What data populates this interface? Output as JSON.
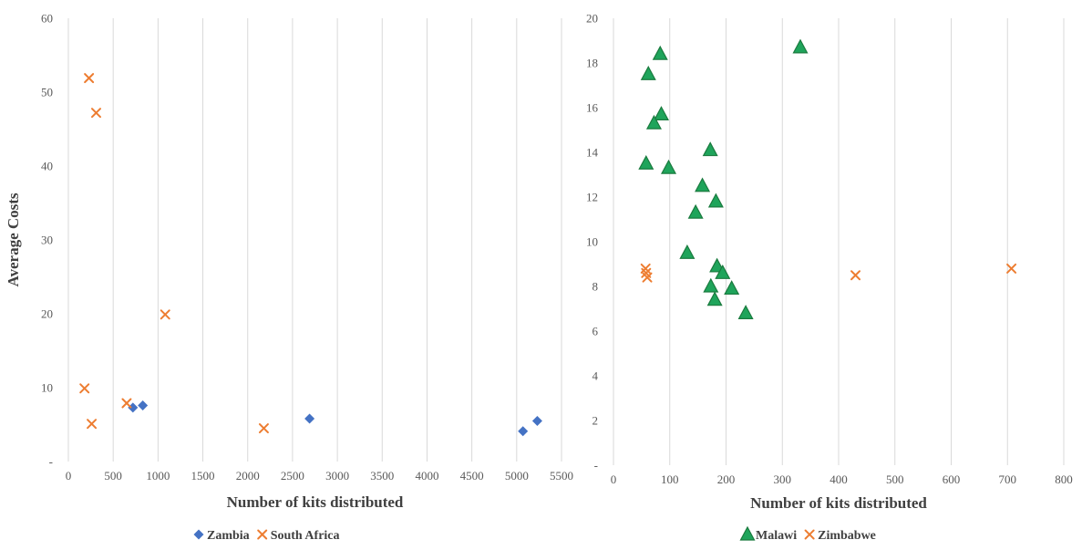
{
  "chart_data": [
    {
      "type": "scatter",
      "title": "",
      "xlabel": "Number of kits distributed",
      "ylabel": "Average Costs",
      "xlim": [
        0,
        5500
      ],
      "ylim": [
        0,
        60
      ],
      "x_ticks": [
        "0",
        "500",
        "1000",
        "1500",
        "2000",
        "2500",
        "3000",
        "3500",
        "4000",
        "4500",
        "5000",
        "5500"
      ],
      "y_ticks": [
        "-",
        "10",
        "20",
        "30",
        "40",
        "50",
        "60"
      ],
      "grid": "vertical",
      "legend_position": "bottom",
      "series": [
        {
          "name": "Zambia",
          "marker": "diamond",
          "color": "#4472C4",
          "points": [
            [
              720,
              7.3
            ],
            [
              830,
              7.6
            ],
            [
              2690,
              5.8
            ],
            [
              5070,
              4.1
            ],
            [
              5230,
              5.5
            ]
          ]
        },
        {
          "name": "South Africa",
          "marker": "x",
          "color": "#ED7D31",
          "points": [
            [
              230,
              51.9
            ],
            [
              310,
              47.2
            ],
            [
              1080,
              19.9
            ],
            [
              180,
              9.9
            ],
            [
              650,
              7.9
            ],
            [
              260,
              5.1
            ],
            [
              2180,
              4.5
            ]
          ]
        }
      ]
    },
    {
      "type": "scatter",
      "title": "",
      "xlabel": "Number of kits distributed",
      "ylabel": "",
      "xlim": [
        0,
        800
      ],
      "ylim": [
        0,
        20
      ],
      "x_ticks": [
        "0",
        "100",
        "200",
        "300",
        "400",
        "500",
        "600",
        "700",
        "800"
      ],
      "y_ticks": [
        "-",
        "2",
        "4",
        "6",
        "8",
        "10",
        "12",
        "14",
        "16",
        "18",
        "20"
      ],
      "grid": "vertical",
      "legend_position": "bottom",
      "series": [
        {
          "name": "Malawi",
          "marker": "triangle",
          "color": "#1FA45B",
          "points": [
            [
              332,
              18.7
            ],
            [
              83,
              18.4
            ],
            [
              62,
              17.5
            ],
            [
              85,
              15.7
            ],
            [
              72,
              15.3
            ],
            [
              172,
              14.1
            ],
            [
              58,
              13.5
            ],
            [
              98,
              13.3
            ],
            [
              158,
              12.5
            ],
            [
              182,
              11.8
            ],
            [
              146,
              11.3
            ],
            [
              131,
              9.5
            ],
            [
              184,
              8.9
            ],
            [
              194,
              8.6
            ],
            [
              173,
              8.0
            ],
            [
              210,
              7.9
            ],
            [
              180,
              7.4
            ],
            [
              235,
              6.8
            ]
          ]
        },
        {
          "name": "Zimbabwe",
          "marker": "x",
          "color": "#ED7D31",
          "points": [
            [
              57,
              8.8
            ],
            [
              58,
              8.6
            ],
            [
              60,
              8.4
            ],
            [
              430,
              8.5
            ],
            [
              707,
              8.8
            ]
          ]
        }
      ]
    }
  ]
}
